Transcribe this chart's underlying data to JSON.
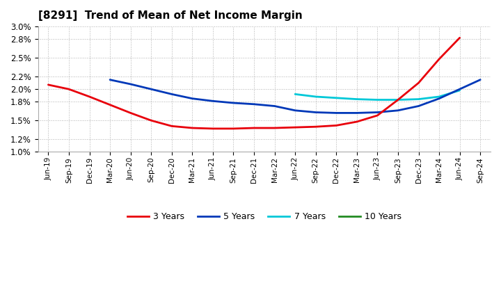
{
  "title": "[8291]  Trend of Mean of Net Income Margin",
  "x_labels": [
    "Jun-19",
    "Sep-19",
    "Dec-19",
    "Mar-20",
    "Jun-20",
    "Sep-20",
    "Dec-20",
    "Mar-21",
    "Jun-21",
    "Sep-21",
    "Dec-21",
    "Mar-22",
    "Jun-22",
    "Sep-22",
    "Dec-22",
    "Mar-23",
    "Jun-23",
    "Sep-23",
    "Dec-23",
    "Mar-24",
    "Jun-24",
    "Sep-24"
  ],
  "ylim": [
    0.01,
    0.03
  ],
  "yticks": [
    0.01,
    0.012,
    0.015,
    0.018,
    0.02,
    0.022,
    0.025,
    0.028,
    0.03
  ],
  "series": [
    {
      "name": "3 Years",
      "color": "#e8000b",
      "data": [
        [
          0,
          0.0207
        ],
        [
          1,
          0.02
        ],
        [
          2,
          0.0188
        ],
        [
          3,
          0.0175
        ],
        [
          4,
          0.0162
        ],
        [
          5,
          0.015
        ],
        [
          6,
          0.0141
        ],
        [
          7,
          0.0138
        ],
        [
          8,
          0.0137
        ],
        [
          9,
          0.0137
        ],
        [
          10,
          0.0138
        ],
        [
          11,
          0.0138
        ],
        [
          12,
          0.0139
        ],
        [
          13,
          0.014
        ],
        [
          14,
          0.0142
        ],
        [
          15,
          0.0148
        ],
        [
          16,
          0.0158
        ],
        [
          17,
          0.0183
        ],
        [
          18,
          0.021
        ],
        [
          19,
          0.0248
        ],
        [
          20,
          0.0282
        ]
      ]
    },
    {
      "name": "5 Years",
      "color": "#0038b8",
      "data": [
        [
          3,
          0.0215
        ],
        [
          4,
          0.0208
        ],
        [
          5,
          0.02
        ],
        [
          6,
          0.0192
        ],
        [
          7,
          0.0185
        ],
        [
          8,
          0.0181
        ],
        [
          9,
          0.0178
        ],
        [
          10,
          0.0176
        ],
        [
          11,
          0.0173
        ],
        [
          12,
          0.0166
        ],
        [
          13,
          0.0163
        ],
        [
          14,
          0.0162
        ],
        [
          15,
          0.0162
        ],
        [
          16,
          0.0163
        ],
        [
          17,
          0.0166
        ],
        [
          18,
          0.0173
        ],
        [
          19,
          0.0185
        ],
        [
          20,
          0.02
        ],
        [
          21,
          0.0215
        ]
      ]
    },
    {
      "name": "7 Years",
      "color": "#00c8d8",
      "data": [
        [
          12,
          0.0192
        ],
        [
          13,
          0.0188
        ],
        [
          14,
          0.0186
        ],
        [
          15,
          0.0184
        ],
        [
          16,
          0.0183
        ],
        [
          17,
          0.0183
        ],
        [
          18,
          0.0184
        ],
        [
          19,
          0.0188
        ],
        [
          20,
          0.0198
        ]
      ]
    },
    {
      "name": "10 Years",
      "color": "#228b22",
      "data": []
    }
  ],
  "legend_colors": {
    "3 Years": "#e8000b",
    "5 Years": "#0038b8",
    "7 Years": "#00c8d8",
    "10 Years": "#228b22"
  },
  "background_color": "#ffffff",
  "grid_color": "#b0b0b0"
}
